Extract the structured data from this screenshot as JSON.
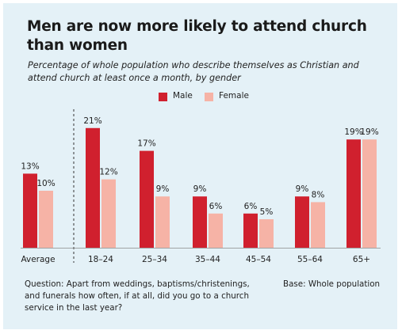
{
  "title": "Men are now more likely to attend church than women",
  "subtitle": "Percentage of whole population who describe themselves as Christian and attend church at least once a month, by gender",
  "footnote": "Question: Apart from weddings, baptisms/christenings, and funerals how often, if at all, did you go to a church service in the last year?",
  "base_note": "Base: Whole population",
  "colors": {
    "male": "#d0202e",
    "female": "#f6b3a6",
    "background": "#e4f1f7"
  },
  "chart_data": {
    "type": "bar",
    "title": "Men are now more likely to attend church than women",
    "categories": [
      "Average",
      "18–24",
      "25–34",
      "35–44",
      "45–54",
      "55–64",
      "65+"
    ],
    "series": [
      {
        "name": "Male",
        "values": [
          13,
          21,
          17,
          9,
          6,
          9,
          19
        ],
        "labels": [
          "13%",
          "21%",
          "17%",
          "9%",
          "6%",
          "9%",
          "19%"
        ]
      },
      {
        "name": "Female",
        "values": [
          10,
          12,
          9,
          6,
          5,
          8,
          19
        ],
        "labels": [
          "10%",
          "12%",
          "9%",
          "6%",
          "5%",
          "8%",
          "19%"
        ]
      }
    ],
    "ylim": [
      0,
      21
    ],
    "xlabel": "",
    "ylabel": "",
    "grid": false,
    "legend": "top-center",
    "separator_after": "Average"
  }
}
